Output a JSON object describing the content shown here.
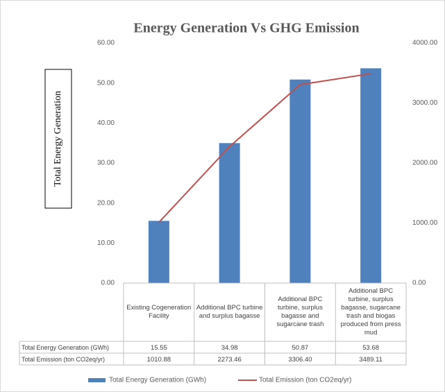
{
  "chart_data": {
    "type": "bar_line",
    "title": "Energy Generation Vs GHG Emission",
    "y_label": "Total Energy Generation",
    "categories": [
      "Existing Cogeneration Facility",
      "Additional BPC turbine and surplus bagasse",
      "Additional BPC turbine, surplus bagasse and sugarcane trash",
      "Additional BPC turbine, surplus bagasse, sugarcane trash and biogas produced from press mud"
    ],
    "series": [
      {
        "name": "Total Energy Generation (GWh)",
        "type": "bar",
        "color": "#4f81bd",
        "values": [
          15.55,
          34.98,
          50.87,
          53.68
        ],
        "value_labels": [
          "15.55",
          "34.98",
          "50.87",
          "53.68"
        ]
      },
      {
        "name": "Total Emission  (ton CO2eq/yr)",
        "type": "line",
        "axis": "y2",
        "color": "#c0504d",
        "values": [
          1010.88,
          2273.46,
          3306.4,
          3489.11
        ],
        "value_labels": [
          "1010.88",
          "2273.46",
          "3306.40",
          "3489.11"
        ]
      }
    ],
    "ylim": [
      0,
      60
    ],
    "yticks": [
      {
        "value": 0,
        "label": "0.00"
      },
      {
        "value": 10,
        "label": "10.00"
      },
      {
        "value": 20,
        "label": "20.00"
      },
      {
        "value": 30,
        "label": "30.00"
      },
      {
        "value": 40,
        "label": "40.00"
      },
      {
        "value": 50,
        "label": "50.00"
      },
      {
        "value": 60,
        "label": "60.00"
      }
    ],
    "y2lim": [
      0,
      4000
    ],
    "y2ticks": [
      {
        "value": 0,
        "label": "0.00"
      },
      {
        "value": 1000,
        "label": "1000.00"
      },
      {
        "value": 2000,
        "label": "2000.00"
      },
      {
        "value": 3000,
        "label": "3000.00"
      },
      {
        "value": 4000,
        "label": "4000.00"
      }
    ],
    "grid": false,
    "legend": "bottom"
  }
}
